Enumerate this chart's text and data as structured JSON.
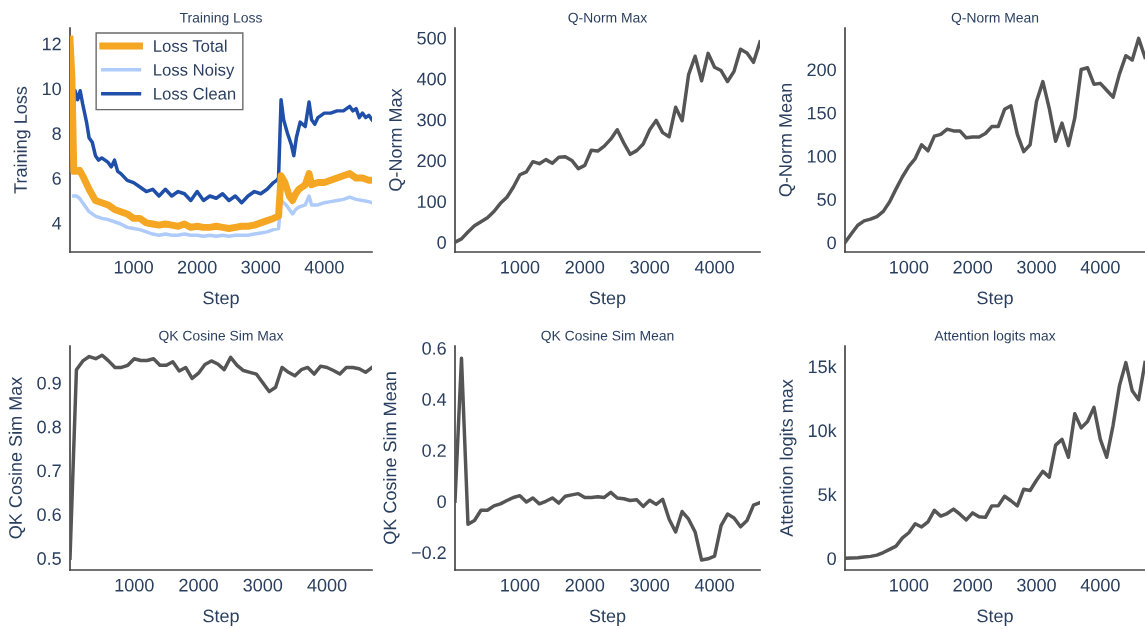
{
  "chart_data": [
    {
      "type": "line",
      "title": "Training Loss",
      "xlabel": "Step",
      "ylabel": "Training Loss",
      "xlim": [
        0,
        4750
      ],
      "xticks": [
        1000,
        2000,
        3000,
        4000
      ],
      "ylim": [
        2.7,
        12.7
      ],
      "yticks": [
        4,
        6,
        8,
        10,
        12
      ],
      "grid": false,
      "legend": "top left",
      "series": [
        {
          "name": "Loss Total",
          "color": "#f5a623",
          "x": [
            0,
            30,
            60,
            100,
            150,
            200,
            300,
            400,
            500,
            600,
            700,
            800,
            900,
            1000,
            1100,
            1200,
            1300,
            1400,
            1500,
            1600,
            1700,
            1800,
            1900,
            2000,
            2100,
            2200,
            2300,
            2400,
            2500,
            2600,
            2700,
            2800,
            2900,
            3000,
            3100,
            3200,
            3280,
            3320,
            3380,
            3450,
            3500,
            3550,
            3600,
            3700,
            3760,
            3800,
            3900,
            4000,
            4100,
            4200,
            4300,
            4400,
            4500,
            4600,
            4700,
            4750
          ],
          "values": [
            12.2,
            10.5,
            6.3,
            6.3,
            6.35,
            6.1,
            5.5,
            5.0,
            4.9,
            4.8,
            4.6,
            4.5,
            4.4,
            4.2,
            4.2,
            4.0,
            3.95,
            3.9,
            3.95,
            3.9,
            3.85,
            3.95,
            3.8,
            3.85,
            3.8,
            3.8,
            3.85,
            3.8,
            3.75,
            3.8,
            3.85,
            3.85,
            3.9,
            4.0,
            4.1,
            4.2,
            4.3,
            6.1,
            5.8,
            5.2,
            5.0,
            5.3,
            5.5,
            5.7,
            6.2,
            5.7,
            5.8,
            5.8,
            5.9,
            6.0,
            6.1,
            6.2,
            6.0,
            6.0,
            5.9,
            5.9
          ]
        },
        {
          "name": "Loss Noisy",
          "color": "#aecbfa",
          "x": [
            60,
            100,
            150,
            200,
            300,
            400,
            500,
            600,
            700,
            800,
            900,
            1000,
            1100,
            1200,
            1300,
            1400,
            1500,
            1600,
            1700,
            1800,
            1900,
            2000,
            2100,
            2200,
            2300,
            2400,
            2500,
            2600,
            2700,
            2800,
            2900,
            3000,
            3100,
            3200,
            3280,
            3320,
            3400,
            3500,
            3550,
            3600,
            3700,
            3760,
            3800,
            3900,
            4000,
            4100,
            4200,
            4300,
            4400,
            4500,
            4600,
            4700,
            4750
          ],
          "values": [
            5.2,
            5.2,
            5.1,
            4.9,
            4.5,
            4.3,
            4.2,
            4.15,
            4.05,
            3.95,
            3.8,
            3.75,
            3.7,
            3.6,
            3.5,
            3.45,
            3.5,
            3.45,
            3.45,
            3.5,
            3.45,
            3.45,
            3.4,
            3.45,
            3.4,
            3.45,
            3.4,
            3.45,
            3.45,
            3.45,
            3.5,
            3.55,
            3.6,
            3.7,
            3.75,
            5.0,
            4.8,
            4.4,
            4.6,
            4.7,
            4.8,
            5.2,
            4.8,
            4.8,
            4.9,
            4.95,
            5.0,
            5.05,
            5.15,
            5.05,
            5.0,
            4.95,
            4.9
          ]
        },
        {
          "name": "Loss Clean",
          "color": "#1f4fa8",
          "x": [
            0,
            20,
            50,
            80,
            120,
            160,
            200,
            260,
            300,
            350,
            400,
            450,
            500,
            600,
            650,
            700,
            750,
            800,
            900,
            1000,
            1100,
            1200,
            1300,
            1400,
            1500,
            1600,
            1700,
            1800,
            1900,
            2000,
            2100,
            2200,
            2300,
            2400,
            2500,
            2600,
            2700,
            2800,
            2900,
            3000,
            3100,
            3200,
            3250,
            3280,
            3320,
            3360,
            3420,
            3480,
            3520,
            3560,
            3620,
            3700,
            3760,
            3800,
            3850,
            3900,
            4000,
            4100,
            4200,
            4300,
            4400,
            4450,
            4500,
            4550,
            4600,
            4650,
            4700,
            4750
          ],
          "values": [
            12.2,
            11.5,
            9.0,
            9.9,
            9.5,
            9.9,
            9.3,
            8.5,
            7.8,
            7.6,
            7.0,
            6.8,
            6.9,
            6.7,
            6.5,
            6.8,
            6.3,
            6.2,
            5.9,
            5.8,
            5.6,
            5.4,
            5.5,
            5.2,
            5.5,
            5.2,
            5.4,
            5.3,
            5.0,
            5.4,
            5.0,
            5.2,
            5.1,
            5.3,
            5.0,
            5.2,
            4.9,
            5.2,
            5.4,
            5.3,
            5.5,
            5.8,
            5.9,
            6.0,
            9.5,
            8.6,
            8.0,
            7.5,
            7.0,
            7.8,
            8.5,
            8.3,
            9.4,
            8.6,
            8.4,
            8.7,
            8.9,
            8.9,
            9.0,
            9.0,
            9.2,
            9.0,
            9.1,
            8.7,
            8.9,
            8.7,
            8.8,
            8.6
          ]
        }
      ]
    },
    {
      "type": "line",
      "title": "Q-Norm Max",
      "xlabel": "Step",
      "ylabel": "Q-Norm Max",
      "xlim": [
        0,
        4700
      ],
      "xticks": [
        1000,
        2000,
        3000,
        4000
      ],
      "ylim": [
        -24,
        524
      ],
      "yticks": [
        0,
        100,
        200,
        300,
        400,
        500
      ],
      "grid": false,
      "x": [
        0,
        100,
        200,
        300,
        400,
        500,
        600,
        700,
        800,
        900,
        1000,
        1100,
        1200,
        1300,
        1400,
        1500,
        1600,
        1700,
        1800,
        1900,
        2000,
        2100,
        2200,
        2300,
        2400,
        2500,
        2600,
        2700,
        2800,
        2900,
        3000,
        3100,
        3200,
        3300,
        3400,
        3500,
        3600,
        3700,
        3800,
        3900,
        4000,
        4100,
        4200,
        4300,
        4400,
        4500,
        4600,
        4700
      ],
      "series": [
        {
          "color": "#555555",
          "values": [
            0,
            8,
            25,
            40,
            50,
            60,
            75,
            95,
            110,
            135,
            165,
            172,
            197,
            192,
            202,
            193,
            208,
            209,
            200,
            180,
            188,
            225,
            223,
            235,
            252,
            275,
            243,
            215,
            224,
            240,
            275,
            298,
            268,
            258,
            330,
            297,
            410,
            455,
            395,
            462,
            428,
            420,
            393,
            418,
            472,
            463,
            440,
            490
          ]
        }
      ]
    },
    {
      "type": "line",
      "title": "Q-Norm Mean",
      "xlabel": "Step",
      "ylabel": "Q-Norm Mean",
      "xlim": [
        0,
        4700
      ],
      "xticks": [
        1000,
        2000,
        3000,
        4000
      ],
      "ylim": [
        -11,
        248
      ],
      "yticks": [
        0,
        50,
        100,
        150,
        200
      ],
      "grid": false,
      "x": [
        0,
        100,
        200,
        300,
        400,
        500,
        600,
        700,
        800,
        900,
        1000,
        1100,
        1200,
        1300,
        1400,
        1500,
        1600,
        1700,
        1800,
        1900,
        2000,
        2100,
        2200,
        2300,
        2400,
        2500,
        2600,
        2700,
        2800,
        2900,
        3000,
        3100,
        3200,
        3300,
        3400,
        3500,
        3600,
        3700,
        3800,
        3900,
        4000,
        4100,
        4200,
        4300,
        4400,
        4500,
        4600,
        4700
      ],
      "series": [
        {
          "color": "#555555",
          "values": [
            0,
            10,
            20,
            25,
            27,
            30,
            36,
            47,
            62,
            76,
            88,
            97,
            113,
            106,
            123,
            125,
            131,
            129,
            129,
            121,
            122,
            122,
            126,
            134,
            134,
            154,
            158,
            125,
            105,
            113,
            163,
            186,
            155,
            117,
            138,
            112,
            144,
            200,
            202,
            183,
            184,
            176,
            168,
            195,
            216,
            211,
            236,
            214
          ]
        }
      ]
    },
    {
      "type": "line",
      "title": "QK Cosine Sim Max",
      "xlabel": "Step",
      "ylabel": "QK Cosine Sim Max",
      "xlim": [
        0,
        4700
      ],
      "xticks": [
        1000,
        2000,
        3000,
        4000
      ],
      "ylim": [
        0.473,
        0.984
      ],
      "yticks": [
        0.5,
        0.6,
        0.7,
        0.8,
        0.9
      ],
      "grid": false,
      "x": [
        0,
        100,
        200,
        300,
        400,
        500,
        600,
        700,
        800,
        900,
        1000,
        1100,
        1200,
        1300,
        1400,
        1500,
        1600,
        1700,
        1800,
        1900,
        2000,
        2100,
        2200,
        2300,
        2400,
        2500,
        2600,
        2700,
        2800,
        2900,
        3000,
        3100,
        3200,
        3300,
        3400,
        3500,
        3600,
        3700,
        3800,
        3900,
        4000,
        4100,
        4200,
        4300,
        4400,
        4500,
        4600,
        4700
      ],
      "series": [
        {
          "color": "#555555",
          "values": [
            0.5,
            0.93,
            0.95,
            0.96,
            0.955,
            0.963,
            0.95,
            0.935,
            0.935,
            0.94,
            0.955,
            0.951,
            0.951,
            0.955,
            0.94,
            0.94,
            0.948,
            0.927,
            0.935,
            0.91,
            0.922,
            0.942,
            0.95,
            0.943,
            0.93,
            0.958,
            0.94,
            0.928,
            0.924,
            0.92,
            0.9,
            0.88,
            0.89,
            0.935,
            0.924,
            0.916,
            0.93,
            0.935,
            0.92,
            0.938,
            0.935,
            0.928,
            0.92,
            0.935,
            0.935,
            0.932,
            0.924,
            0.935
          ]
        }
      ]
    },
    {
      "type": "line",
      "title": "QK Cosine Sim Mean",
      "xlabel": "Step",
      "ylabel": "QK Cosine Sim Mean",
      "xlim": [
        0,
        4700
      ],
      "xticks": [
        1000,
        2000,
        3000,
        4000
      ],
      "ylim": [
        -0.269,
        0.608
      ],
      "yticks": [
        {
          "value": -0.2,
          "label": "−0.2"
        },
        0,
        0.2,
        0.4,
        0.6
      ],
      "grid": false,
      "x": [
        0,
        100,
        200,
        300,
        400,
        500,
        600,
        700,
        800,
        900,
        1000,
        1100,
        1200,
        1300,
        1400,
        1500,
        1600,
        1700,
        1800,
        1900,
        2000,
        2100,
        2200,
        2300,
        2400,
        2500,
        2600,
        2700,
        2800,
        2900,
        3000,
        3100,
        3200,
        3300,
        3400,
        3500,
        3600,
        3700,
        3800,
        3900,
        4000,
        4100,
        4200,
        4300,
        4400,
        4500,
        4600,
        4700
      ],
      "series": [
        {
          "color": "#555555",
          "values": [
            0.0,
            0.56,
            -0.09,
            -0.075,
            -0.035,
            -0.035,
            -0.018,
            -0.01,
            0.003,
            0.015,
            0.022,
            -0.003,
            0.013,
            -0.01,
            0.0,
            0.013,
            -0.007,
            0.02,
            0.025,
            0.03,
            0.015,
            0.015,
            0.018,
            0.015,
            0.035,
            0.013,
            0.01,
            0.003,
            0.006,
            -0.02,
            0.004,
            -0.012,
            0.008,
            -0.07,
            -0.12,
            -0.04,
            -0.07,
            -0.12,
            -0.23,
            -0.225,
            -0.215,
            -0.095,
            -0.05,
            -0.065,
            -0.1,
            -0.075,
            -0.015,
            -0.005
          ]
        }
      ]
    },
    {
      "type": "line",
      "title": "Attention logits max",
      "xlabel": "Step",
      "ylabel": "Attention logits max",
      "xlim": [
        0,
        4700
      ],
      "xticks": [
        1000,
        2000,
        3000,
        4000
      ],
      "ylim": [
        -914,
        16600
      ],
      "yticks": [
        0,
        {
          "value": 5000,
          "label": "5k"
        },
        {
          "value": 10000,
          "label": "10k"
        },
        {
          "value": 15000,
          "label": "15k"
        }
      ],
      "grid": false,
      "x": [
        0,
        100,
        200,
        300,
        400,
        500,
        600,
        700,
        800,
        900,
        1000,
        1100,
        1200,
        1300,
        1400,
        1500,
        1600,
        1700,
        1800,
        1900,
        2000,
        2100,
        2200,
        2300,
        2400,
        2500,
        2600,
        2700,
        2800,
        2900,
        3000,
        3100,
        3200,
        3300,
        3400,
        3500,
        3600,
        3700,
        3800,
        3900,
        4000,
        4100,
        4200,
        4300,
        4400,
        4500,
        4600,
        4700
      ],
      "series": [
        {
          "color": "#555555",
          "values": [
            0,
            20,
            50,
            100,
            150,
            250,
            450,
            700,
            950,
            1600,
            2000,
            2700,
            2450,
            2850,
            3750,
            3300,
            3500,
            3850,
            3450,
            3000,
            3550,
            3250,
            3200,
            4100,
            4100,
            4850,
            4500,
            4100,
            5400,
            5300,
            6100,
            6800,
            6350,
            8850,
            9300,
            7900,
            11300,
            10200,
            10700,
            11800,
            9300,
            7900,
            10400,
            13500,
            15300,
            13100,
            12400,
            15300
          ]
        }
      ]
    }
  ]
}
